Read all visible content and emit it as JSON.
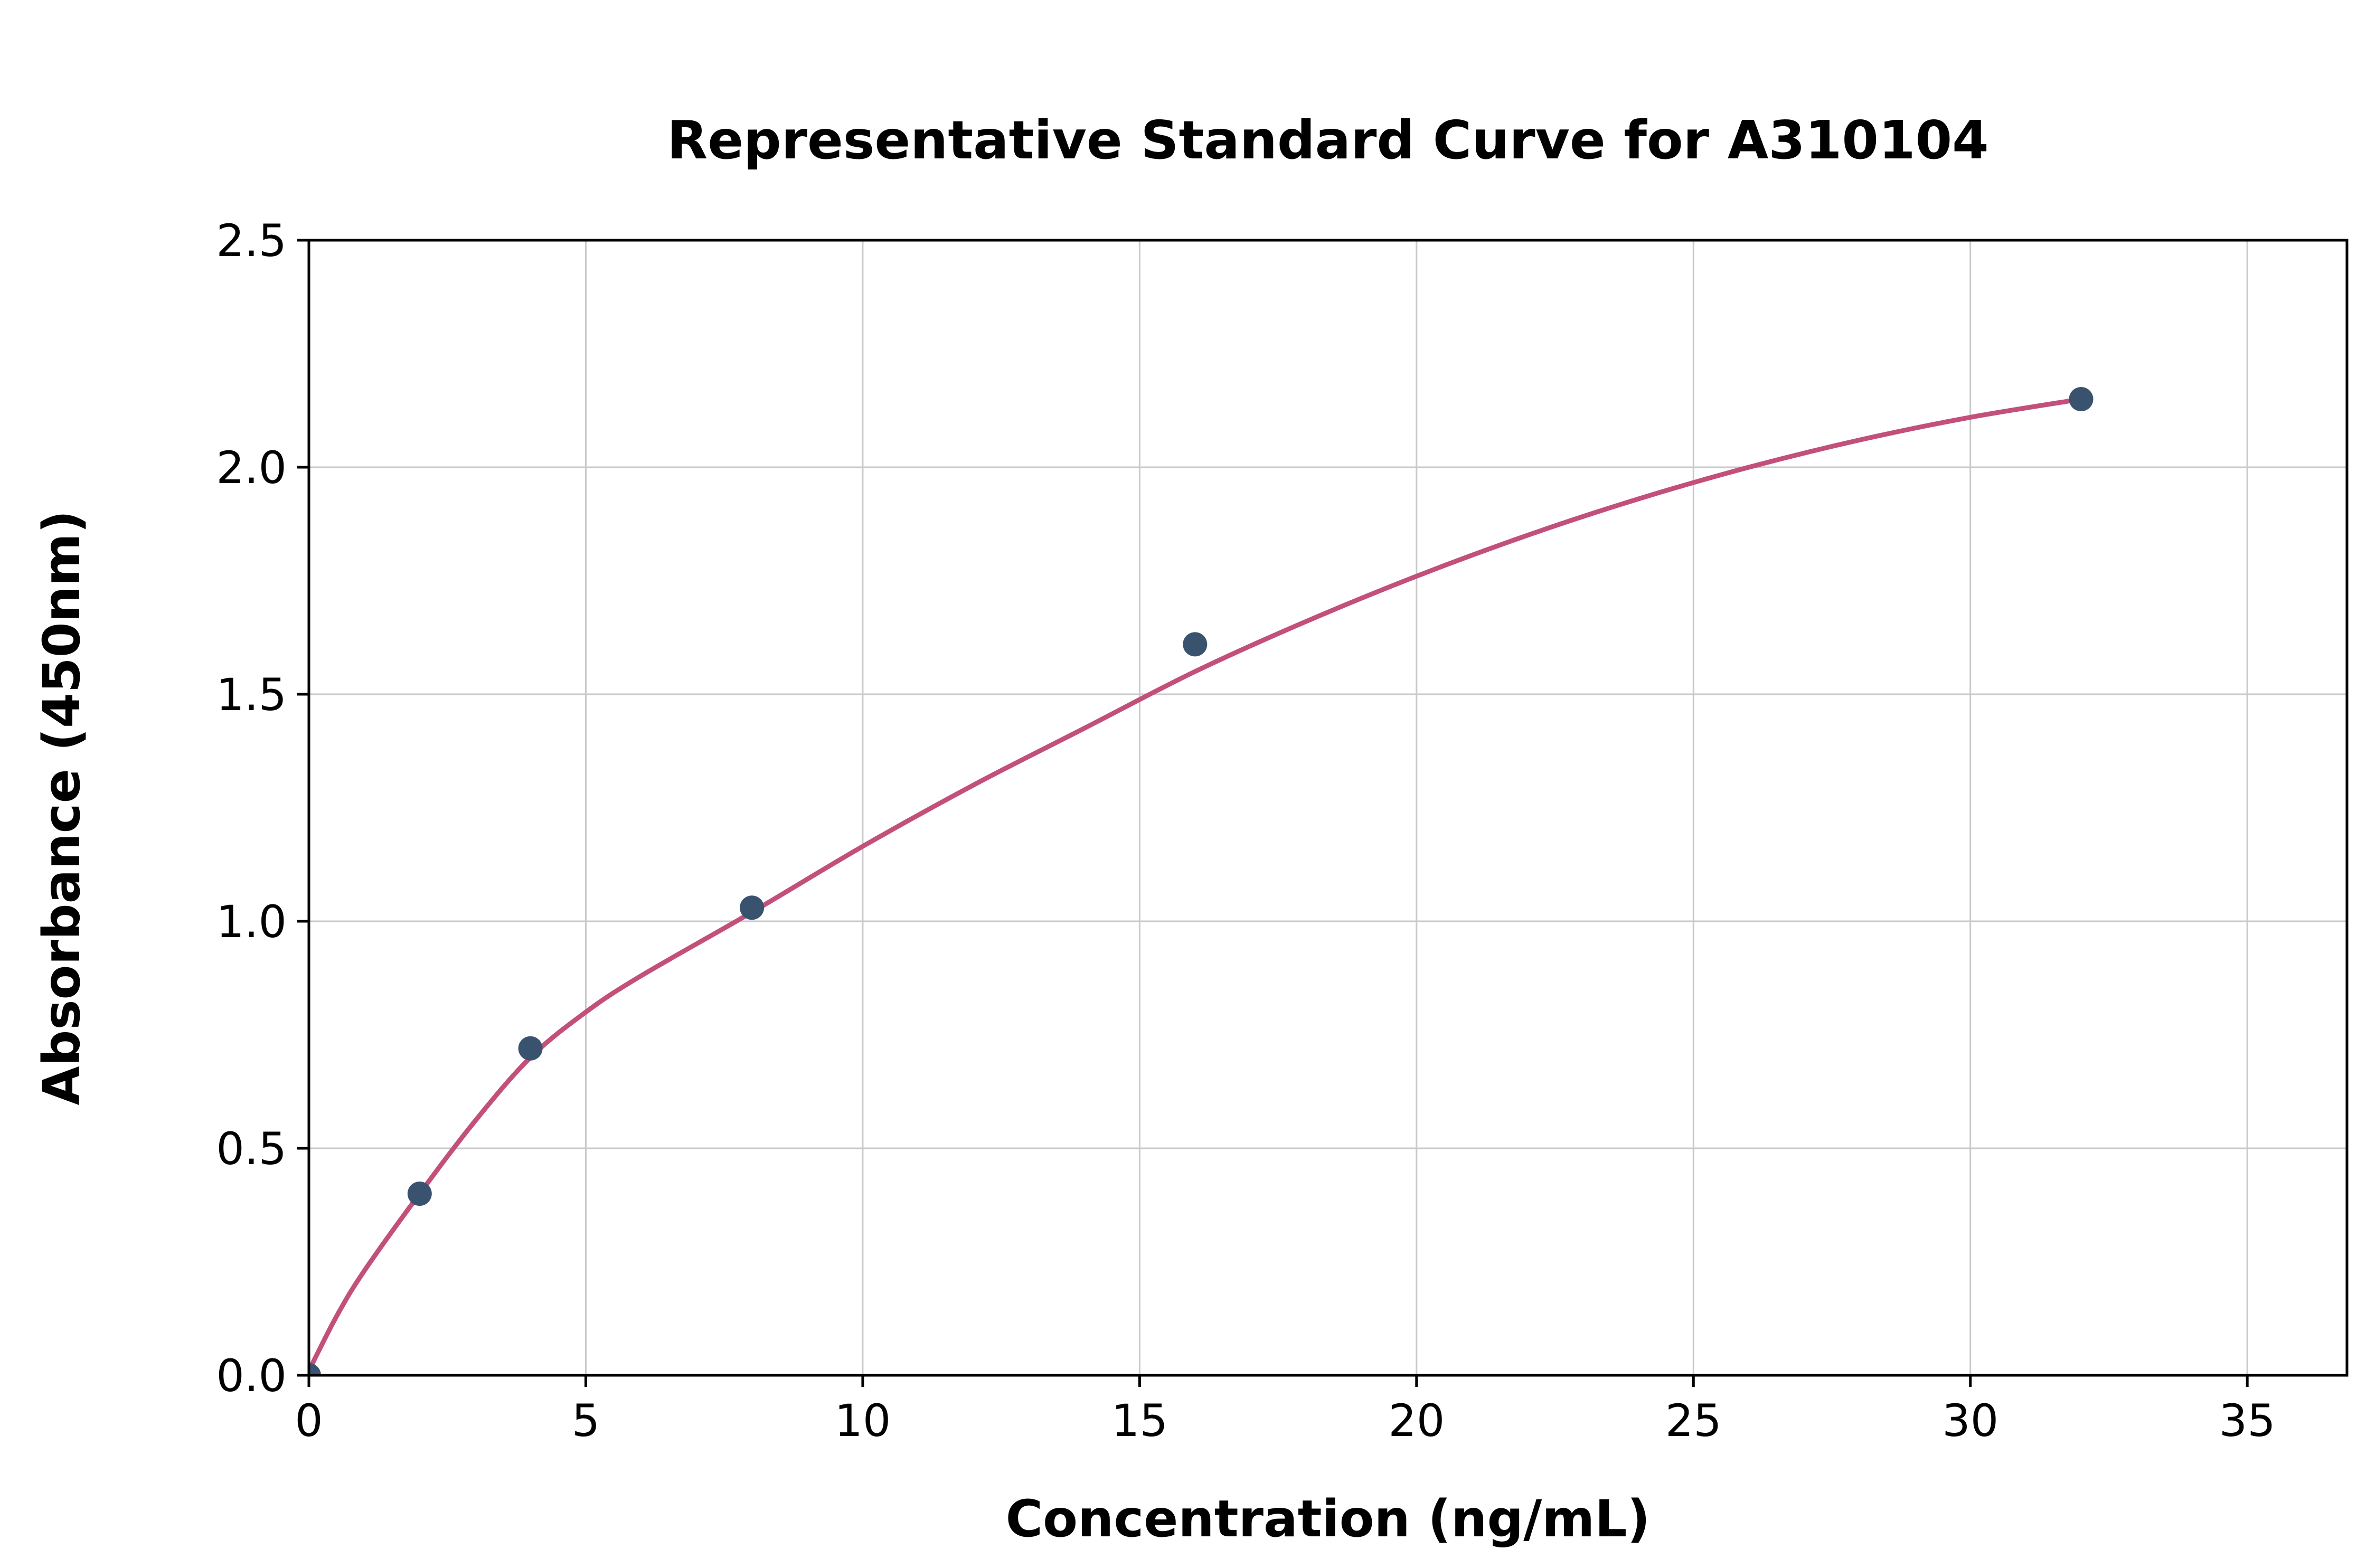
{
  "figure": {
    "background_color": "#ffffff"
  },
  "chart_data": {
    "type": "scatter",
    "title": "Representative Standard Curve for A310104",
    "xlabel": "Concentration (ng/mL)",
    "ylabel": "Absorbance (450nm)",
    "xlim": [
      0,
      36.8
    ],
    "ylim": [
      0,
      2.5
    ],
    "x_ticks": [
      0,
      5,
      10,
      15,
      20,
      25,
      30,
      35
    ],
    "x_tick_labels": [
      "0",
      "5",
      "10",
      "15",
      "20",
      "25",
      "30",
      "35"
    ],
    "y_ticks": [
      0.0,
      0.5,
      1.0,
      1.5,
      2.0,
      2.5
    ],
    "y_tick_labels": [
      "0.0",
      "0.5",
      "1.0",
      "1.5",
      "2.0",
      "2.5"
    ],
    "grid": true,
    "legend": "none",
    "points": [
      [
        0,
        0.0
      ],
      [
        2,
        0.4
      ],
      [
        4,
        0.72
      ],
      [
        8,
        1.03
      ],
      [
        16,
        1.61
      ],
      [
        32,
        2.15
      ]
    ],
    "fit_curve": [
      [
        0,
        0.01
      ],
      [
        0.5,
        0.13
      ],
      [
        1,
        0.23
      ],
      [
        2,
        0.4
      ],
      [
        3,
        0.56
      ],
      [
        4,
        0.7
      ],
      [
        5,
        0.8
      ],
      [
        6,
        0.88
      ],
      [
        8,
        1.02
      ],
      [
        10,
        1.165
      ],
      [
        12,
        1.3
      ],
      [
        14,
        1.425
      ],
      [
        16,
        1.55
      ],
      [
        18,
        1.66
      ],
      [
        20,
        1.76
      ],
      [
        22,
        1.85
      ],
      [
        24,
        1.93
      ],
      [
        26,
        2.0
      ],
      [
        28,
        2.06
      ],
      [
        30,
        2.11
      ],
      [
        32,
        2.15
      ]
    ],
    "point_color": "#39536f",
    "curve_color": "#c2507a",
    "grid_color": "#c9c9c9",
    "axis_color": "#000000",
    "text_color": "#000000"
  }
}
